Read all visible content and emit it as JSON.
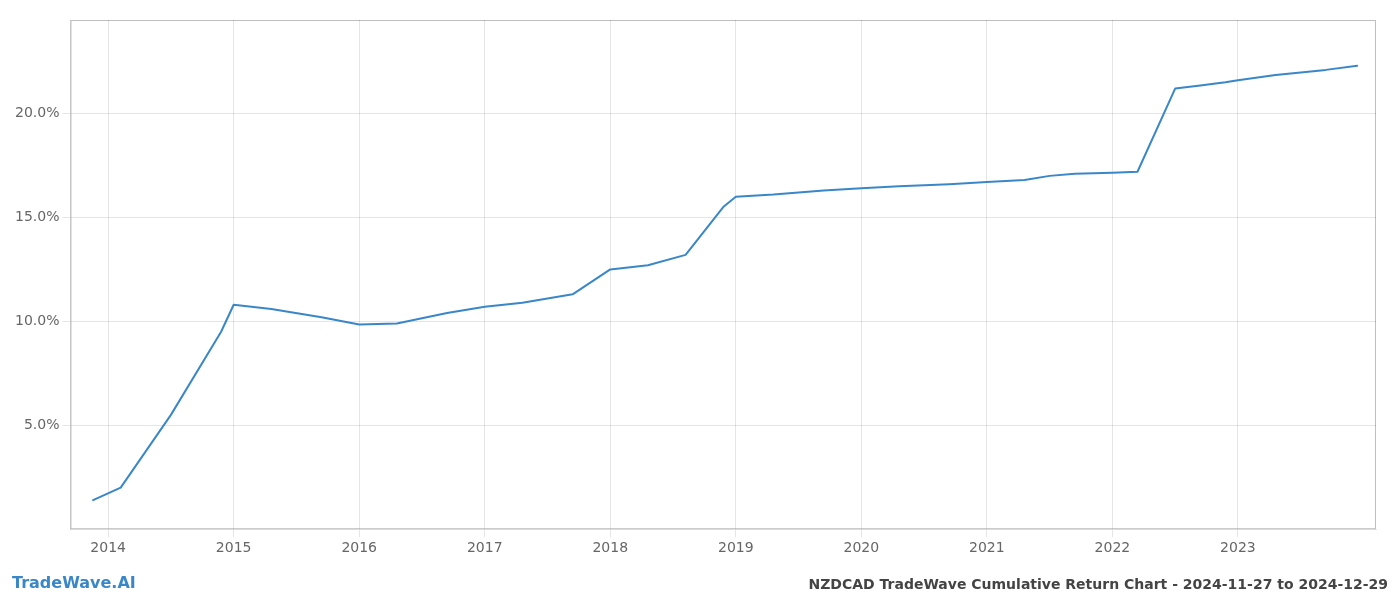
{
  "chart_data": {
    "type": "line",
    "title": "NZDCAD TradeWave Cumulative Return Chart - 2024-11-27 to 2024-12-29",
    "annotations": [
      "TradeWave.AI"
    ],
    "x": [
      2013.88,
      2014.1,
      2014.5,
      2014.9,
      2015.0,
      2015.3,
      2015.7,
      2016.0,
      2016.3,
      2016.7,
      2017.0,
      2017.3,
      2017.7,
      2018.0,
      2018.3,
      2018.6,
      2018.9,
      2019.0,
      2019.3,
      2019.7,
      2020.0,
      2020.3,
      2020.7,
      2021.0,
      2021.3,
      2021.5,
      2021.7,
      2022.0,
      2022.2,
      2022.5,
      2022.7,
      2022.9,
      2023.0,
      2023.3,
      2023.7,
      2023.95
    ],
    "values": [
      1.4,
      2.0,
      5.5,
      9.5,
      10.8,
      10.6,
      10.2,
      9.85,
      9.9,
      10.4,
      10.7,
      10.9,
      11.3,
      12.5,
      12.7,
      13.2,
      15.5,
      16.0,
      16.1,
      16.3,
      16.4,
      16.5,
      16.6,
      16.7,
      16.8,
      17.0,
      17.1,
      17.15,
      17.2,
      21.2,
      21.35,
      21.5,
      21.6,
      21.85,
      22.1,
      22.3
    ],
    "color": "#3a87c8",
    "xlim": [
      2013.7,
      2024.1
    ],
    "xticks": [
      2014,
      2015,
      2016,
      2017,
      2018,
      2019,
      2020,
      2021,
      2022,
      2023
    ],
    "ylim": [
      0.0,
      24.5
    ],
    "yticks": [
      {
        "value": 5.0,
        "label": "5.0%"
      },
      {
        "value": 10.0,
        "label": "10.0%"
      },
      {
        "value": 15.0,
        "label": "15.0%"
      },
      {
        "value": 20.0,
        "label": "20.0%"
      }
    ],
    "grid": true
  }
}
